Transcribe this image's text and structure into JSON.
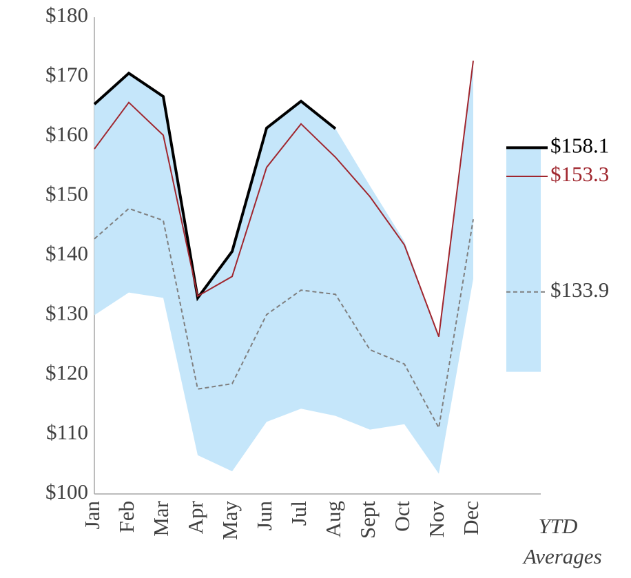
{
  "chart_data": {
    "type": "line",
    "categories": [
      "Jan",
      "Feb",
      "Mar",
      "Apr",
      "May",
      "Jun",
      "Jul",
      "Aug",
      "Sept",
      "Oct",
      "Nov",
      "Dec"
    ],
    "ylim": [
      100,
      180
    ],
    "yticks": [
      {
        "value": 100,
        "label": "$100"
      },
      {
        "value": 110,
        "label": "$110"
      },
      {
        "value": 120,
        "label": "$120"
      },
      {
        "value": 130,
        "label": "$130"
      },
      {
        "value": 140,
        "label": "$140"
      },
      {
        "value": 150,
        "label": "$150"
      },
      {
        "value": 160,
        "label": "$160"
      },
      {
        "value": 170,
        "label": "$170"
      },
      {
        "value": 180,
        "label": "$180"
      }
    ],
    "band": {
      "color": "#c5e6fa",
      "upper": [
        165.4,
        170.6,
        166.7,
        132.9,
        140.7,
        161.4,
        165.9,
        161.3,
        151.7,
        142.4,
        126.4,
        172.7
      ],
      "lower": [
        130.0,
        133.8,
        132.9,
        106.5,
        103.8,
        112.1,
        114.3,
        113.1,
        110.8,
        111.7,
        103.4,
        136.1
      ],
      "ytd_range": [
        120.5,
        158.1
      ]
    },
    "series": [
      {
        "color": "#000000",
        "style": "solid",
        "width": 4,
        "values": [
          165.4,
          170.6,
          166.7,
          132.9,
          140.7,
          161.4,
          165.9,
          161.3,
          null,
          null,
          null,
          null
        ],
        "ytd_value": 158.1,
        "ytd_label": "$158.1"
      },
      {
        "color": "#a0262e",
        "style": "solid",
        "width": 2,
        "values": [
          157.9,
          165.7,
          160.2,
          133.2,
          136.5,
          154.8,
          162.1,
          156.5,
          149.9,
          141.8,
          126.4,
          172.7
        ],
        "ytd_value": 153.3,
        "ytd_label": "$153.3"
      },
      {
        "color": "#7f7f7f",
        "style": "dashed",
        "width": 2,
        "values": [
          142.8,
          147.9,
          145.9,
          117.6,
          118.5,
          130.1,
          134.2,
          133.5,
          124.2,
          121.8,
          111.1,
          146.1
        ],
        "ytd_value": 133.9,
        "ytd_label": "$133.9"
      }
    ],
    "ytd_category": "YTD Averages"
  }
}
